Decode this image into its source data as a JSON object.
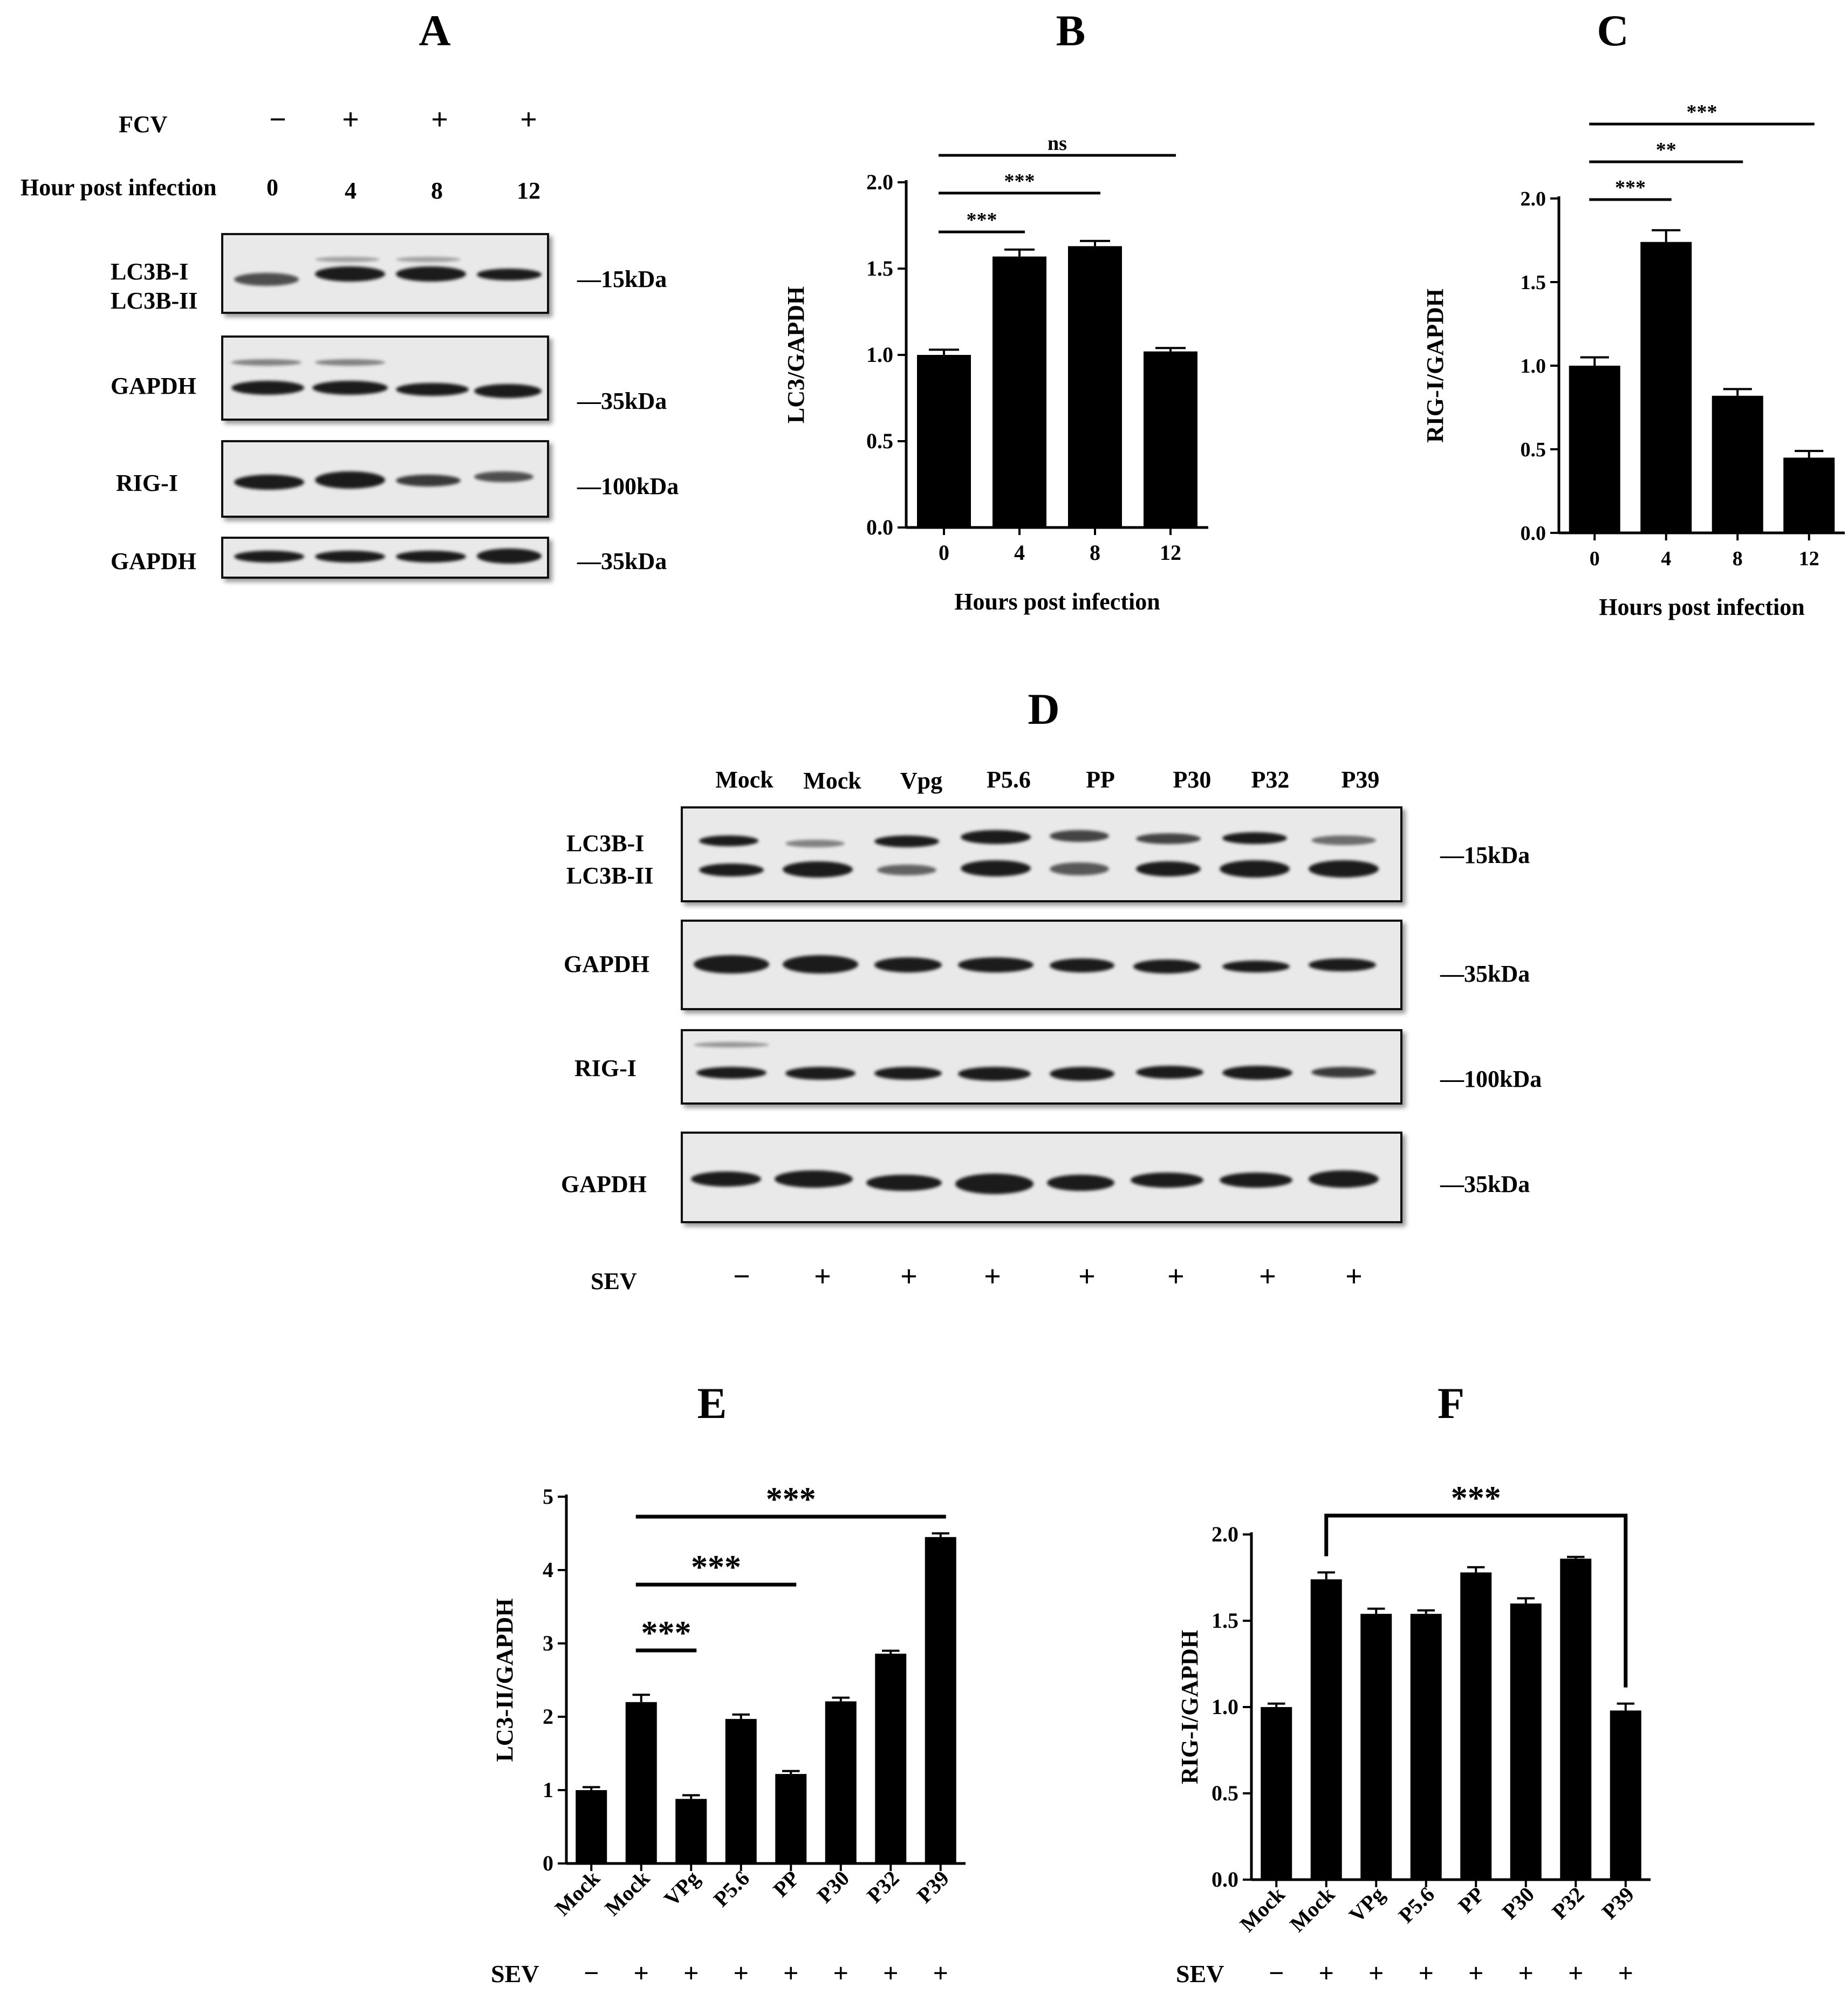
{
  "panels": {
    "A": "A",
    "B": "B",
    "C": "C",
    "D": "D",
    "E": "E",
    "F": "F"
  },
  "blotA": {
    "fcv_label": "FCV",
    "fcv_signs": [
      "−",
      "+",
      "+",
      "+"
    ],
    "hpi_label": "Hour post infection",
    "hpi_values": [
      "0",
      "4",
      "8",
      "12"
    ],
    "rows": [
      {
        "label": "LC3B-I",
        "label2": "LC3B-II",
        "marker": "—15kDa"
      },
      {
        "label": "GAPDH",
        "label2": "",
        "marker": "—35kDa"
      },
      {
        "label": "RIG-I",
        "label2": "",
        "marker": "—100kDa"
      },
      {
        "label": "GAPDH",
        "label2": "",
        "marker": "—35kDa"
      }
    ]
  },
  "blotD": {
    "lanes": [
      "Mock",
      "Mock",
      "Vpg",
      "P5.6",
      "PP",
      "P30",
      "P32",
      "P39"
    ],
    "sev_label": "SEV",
    "sev_signs": [
      "−",
      "+",
      "+",
      "+",
      "+",
      "+",
      "+",
      "+"
    ],
    "rows": [
      {
        "label": "LC3B-I",
        "label2": "LC3B-II",
        "marker": "—15kDa"
      },
      {
        "label": "GAPDH",
        "label2": "",
        "marker": "—35kDa"
      },
      {
        "label": "RIG-I",
        "label2": "",
        "marker": "—100kDa"
      },
      {
        "label": "GAPDH",
        "label2": "",
        "marker": "—35kDa"
      }
    ]
  },
  "chart_data": [
    {
      "id": "B",
      "type": "bar",
      "title": "B",
      "categories": [
        "0",
        "4",
        "8",
        "12"
      ],
      "values": [
        1.0,
        1.57,
        1.63,
        1.02
      ],
      "errors": [
        0.03,
        0.04,
        0.03,
        0.02
      ],
      "xlabel": "Hours post infection",
      "ylabel": "LC3/GAPDH",
      "ylim": [
        0,
        2.0
      ],
      "yticks": [
        "0.0",
        "0.5",
        "1.0",
        "1.5",
        "2.0"
      ],
      "significance": [
        {
          "from": 0,
          "to": 1,
          "label": "***"
        },
        {
          "from": 0,
          "to": 2,
          "label": "***"
        },
        {
          "from": 0,
          "to": 3,
          "label": "ns"
        }
      ]
    },
    {
      "id": "C",
      "type": "bar",
      "title": "C",
      "categories": [
        "0",
        "4",
        "8",
        "12"
      ],
      "values": [
        1.0,
        1.74,
        0.82,
        0.45
      ],
      "errors": [
        0.05,
        0.07,
        0.04,
        0.04
      ],
      "xlabel": "Hours post infection",
      "ylabel": "RIG-I/GAPDH",
      "ylim": [
        0,
        2.0
      ],
      "yticks": [
        "0.0",
        "0.5",
        "1.0",
        "1.5",
        "2.0"
      ],
      "significance": [
        {
          "from": 0,
          "to": 1,
          "label": "***"
        },
        {
          "from": 0,
          "to": 2,
          "label": "**"
        },
        {
          "from": 0,
          "to": 3,
          "label": "***"
        }
      ]
    },
    {
      "id": "E",
      "type": "bar",
      "title": "E",
      "categories": [
        "Mock",
        "Mock",
        "VPg",
        "P5.6",
        "PP",
        "P30",
        "P32",
        "P39"
      ],
      "values": [
        1.0,
        2.2,
        0.88,
        1.97,
        1.22,
        2.21,
        2.86,
        4.45
      ],
      "errors": [
        0.04,
        0.1,
        0.05,
        0.06,
        0.04,
        0.05,
        0.04,
        0.05
      ],
      "xlabel": "",
      "ylabel": "LC3-II/GAPDH",
      "ylim": [
        0,
        5
      ],
      "yticks": [
        "0",
        "1",
        "2",
        "3",
        "4",
        "5"
      ],
      "sev_label": "SEV",
      "sev_signs": [
        "−",
        "+",
        "+",
        "+",
        "+",
        "+",
        "+",
        "+"
      ],
      "significance": [
        {
          "from": 1,
          "to": 2,
          "label": "***"
        },
        {
          "from": 1,
          "to": 4,
          "label": "***"
        },
        {
          "from": 1,
          "to": 7,
          "label": "***"
        }
      ]
    },
    {
      "id": "F",
      "type": "bar",
      "title": "F",
      "categories": [
        "Mock",
        "Mock",
        "VPg",
        "P5.6",
        "PP",
        "P30",
        "P32",
        "P39"
      ],
      "values": [
        1.0,
        1.74,
        1.54,
        1.54,
        1.78,
        1.6,
        1.86,
        0.98
      ],
      "errors": [
        0.02,
        0.04,
        0.03,
        0.02,
        0.03,
        0.03,
        0.01,
        0.04
      ],
      "xlabel": "",
      "ylabel": "RIG-I/GAPDH",
      "ylim": [
        0,
        2.0
      ],
      "yticks": [
        "0.0",
        "0.5",
        "1.0",
        "1.5",
        "2.0"
      ],
      "sev_label": "SEV",
      "sev_signs": [
        "−",
        "+",
        "+",
        "+",
        "+",
        "+",
        "+",
        "+"
      ],
      "significance": [
        {
          "from": 1,
          "to": 7,
          "label": "***",
          "bracket": true
        }
      ]
    }
  ]
}
